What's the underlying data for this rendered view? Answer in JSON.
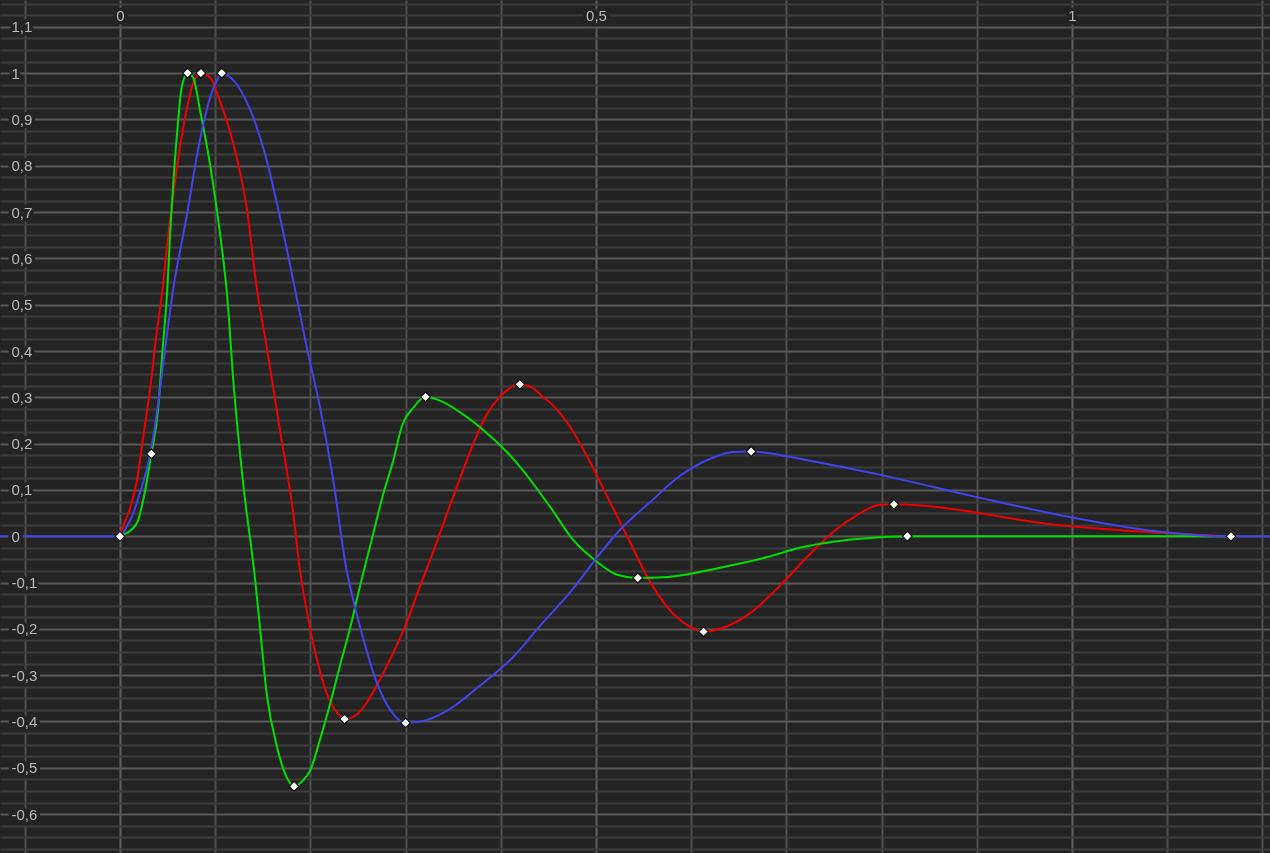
{
  "chart_data": {
    "type": "line",
    "grid": true,
    "xlim": [
      -0.126,
      1.208
    ],
    "xticks": [
      {
        "value": -0.1,
        "label": null
      },
      0,
      {
        "value": 0.1,
        "label": null
      },
      {
        "value": 0.2,
        "label": null
      },
      {
        "value": 0.3,
        "label": null
      },
      {
        "value": 0.4,
        "label": null
      },
      {
        "value": 0.5,
        "label": "0,5"
      },
      {
        "value": 0.6,
        "label": null
      },
      {
        "value": 0.7,
        "label": null
      },
      {
        "value": 0.8,
        "label": null
      },
      {
        "value": 0.9,
        "label": null
      },
      1,
      {
        "value": 1.1,
        "label": null
      },
      {
        "value": 1.2,
        "label": null
      }
    ],
    "ylim": [
      -0.684,
      1.158
    ],
    "yticks": [
      {
        "value": -0.675,
        "label": null
      },
      {
        "value": -0.65,
        "label": null
      },
      {
        "value": -0.625,
        "label": null
      },
      {
        "value": -0.6,
        "label": "-0,6"
      },
      {
        "value": -0.575,
        "label": null
      },
      {
        "value": -0.55,
        "label": null
      },
      {
        "value": -0.525,
        "label": null
      },
      {
        "value": -0.5,
        "label": "-0,5"
      },
      {
        "value": -0.475,
        "label": null
      },
      {
        "value": -0.45,
        "label": null
      },
      {
        "value": -0.425,
        "label": null
      },
      {
        "value": -0.4,
        "label": "-0,4"
      },
      {
        "value": -0.375,
        "label": null
      },
      {
        "value": -0.35,
        "label": null
      },
      {
        "value": -0.325,
        "label": null
      },
      {
        "value": -0.3,
        "label": "-0,3"
      },
      {
        "value": -0.275,
        "label": null
      },
      {
        "value": -0.25,
        "label": null
      },
      {
        "value": -0.225,
        "label": null
      },
      {
        "value": -0.2,
        "label": "-0,2"
      },
      {
        "value": -0.175,
        "label": null
      },
      {
        "value": -0.15,
        "label": null
      },
      {
        "value": -0.125,
        "label": null
      },
      {
        "value": -0.1,
        "label": "-0,1"
      },
      {
        "value": -0.075,
        "label": null
      },
      {
        "value": -0.05,
        "label": null
      },
      {
        "value": -0.025,
        "label": null
      },
      0,
      {
        "value": 0.025,
        "label": null
      },
      {
        "value": 0.05,
        "label": null
      },
      {
        "value": 0.075,
        "label": null
      },
      {
        "value": 0.1,
        "label": "0,1"
      },
      {
        "value": 0.125,
        "label": null
      },
      {
        "value": 0.15,
        "label": null
      },
      {
        "value": 0.175,
        "label": null
      },
      {
        "value": 0.2,
        "label": "0,2"
      },
      {
        "value": 0.225,
        "label": null
      },
      {
        "value": 0.25,
        "label": null
      },
      {
        "value": 0.275,
        "label": null
      },
      {
        "value": 0.3,
        "label": "0,3"
      },
      {
        "value": 0.325,
        "label": null
      },
      {
        "value": 0.35,
        "label": null
      },
      {
        "value": 0.375,
        "label": null
      },
      {
        "value": 0.4,
        "label": "0,4"
      },
      {
        "value": 0.425,
        "label": null
      },
      {
        "value": 0.45,
        "label": null
      },
      {
        "value": 0.475,
        "label": null
      },
      {
        "value": 0.5,
        "label": "0,5"
      },
      {
        "value": 0.525,
        "label": null
      },
      {
        "value": 0.55,
        "label": null
      },
      {
        "value": 0.575,
        "label": null
      },
      {
        "value": 0.6,
        "label": "0,6"
      },
      {
        "value": 0.625,
        "label": null
      },
      {
        "value": 0.65,
        "label": null
      },
      {
        "value": 0.675,
        "label": null
      },
      {
        "value": 0.7,
        "label": "0,7"
      },
      {
        "value": 0.725,
        "label": null
      },
      {
        "value": 0.75,
        "label": null
      },
      {
        "value": 0.775,
        "label": null
      },
      {
        "value": 0.8,
        "label": "0,8"
      },
      {
        "value": 0.825,
        "label": null
      },
      {
        "value": 0.85,
        "label": null
      },
      {
        "value": 0.875,
        "label": null
      },
      {
        "value": 0.9,
        "label": "0,9"
      },
      {
        "value": 0.925,
        "label": null
      },
      {
        "value": 0.95,
        "label": null
      },
      {
        "value": 0.975,
        "label": null
      },
      1,
      {
        "value": 1.025,
        "label": null
      },
      {
        "value": 1.05,
        "label": null
      },
      {
        "value": 1.075,
        "label": null
      },
      {
        "value": 1.1,
        "label": "1,1"
      },
      {
        "value": 1.125,
        "label": null
      },
      {
        "value": 1.15,
        "label": null
      }
    ],
    "series": [
      {
        "color": "#f00000",
        "x": [
          0,
          0.003,
          0.011,
          0.018,
          0.024,
          0.032,
          0.039,
          0.044,
          0.049,
          0.06,
          0.07,
          0.077,
          0.085,
          0.095,
          0.105,
          0.119,
          0.133,
          0.144,
          0.154,
          0.168,
          0.182,
          0.189,
          0.196,
          0.207,
          0.217,
          0.228,
          0.236,
          0.248,
          0.259,
          0.273,
          0.287,
          0.301,
          0.315,
          0.329,
          0.343,
          0.357,
          0.371,
          0.385,
          0.399,
          0.42,
          0.434,
          0.444,
          0.452,
          0.47,
          0.491,
          0.512,
          0.533,
          0.554,
          0.575,
          0.596,
          0.613,
          0.633,
          0.662,
          0.696,
          0.724,
          0.752,
          0.773,
          0.796,
          0.813,
          0.991,
          1.087,
          1.167
        ],
        "values": [
          0,
          0.02,
          0.063,
          0.122,
          0.208,
          0.323,
          0.446,
          0.521,
          0.618,
          0.798,
          0.921,
          0.979,
          1,
          0.99,
          0.94,
          0.848,
          0.711,
          0.532,
          0.41,
          0.23,
          0.05,
          -0.072,
          -0.159,
          -0.267,
          -0.338,
          -0.381,
          -0.395,
          -0.386,
          -0.36,
          -0.31,
          -0.252,
          -0.187,
          -0.109,
          -0.034,
          0.046,
          0.124,
          0.199,
          0.262,
          0.301,
          0.328,
          0.32,
          0.301,
          0.288,
          0.245,
          0.171,
          0.085,
          -0.001,
          -0.088,
          -0.153,
          -0.192,
          -0.206,
          -0.198,
          -0.166,
          -0.101,
          -0.04,
          0.014,
          0.044,
          0.067,
          0.069,
          0.023,
          0.008,
          0
        ]
      },
      {
        "color": "#00e000",
        "x": [
          0,
          0.007,
          0.018,
          0.026,
          0.033,
          0.04,
          0.045,
          0.049,
          0.054,
          0.06,
          0.065,
          0.071,
          0.077,
          0.084,
          0.095,
          0.105,
          0.113,
          0.119,
          0.129,
          0.142,
          0.147,
          0.154,
          0.165,
          0.175,
          0.183,
          0.191,
          0.2,
          0.21,
          0.221,
          0.231,
          0.242,
          0.252,
          0.266,
          0.276,
          0.287,
          0.297,
          0.308,
          0.321,
          0.339,
          0.357,
          0.378,
          0.417,
          0.452,
          0.476,
          0.501,
          0.522,
          0.544,
          0.575,
          0.609,
          0.644,
          0.68,
          0.714,
          0.749,
          0.781,
          0.827,
          1.167
        ],
        "values": [
          0,
          0.007,
          0.029,
          0.094,
          0.178,
          0.273,
          0.409,
          0.51,
          0.698,
          0.871,
          0.971,
          1,
          0.99,
          0.921,
          0.798,
          0.655,
          0.51,
          0.338,
          0.122,
          -0.094,
          -0.195,
          -0.338,
          -0.455,
          -0.52,
          -0.54,
          -0.53,
          -0.505,
          -0.44,
          -0.36,
          -0.28,
          -0.196,
          -0.109,
          0.005,
          0.087,
          0.163,
          0.243,
          0.277,
          0.301,
          0.29,
          0.268,
          0.236,
          0.158,
          0.063,
          -0.008,
          -0.055,
          -0.083,
          -0.09,
          -0.088,
          -0.077,
          -0.062,
          -0.045,
          -0.025,
          -0.012,
          -0.005,
          0,
          0
        ]
      },
      {
        "color": "#4343f0",
        "x": [
          -0.126,
          0,
          0.007,
          0.014,
          0.021,
          0.028,
          0.035,
          0.042,
          0.049,
          0.055,
          0.07,
          0.084,
          0.095,
          0.102,
          0.107,
          0.119,
          0.137,
          0.154,
          0.168,
          0.184,
          0.196,
          0.21,
          0.224,
          0.238,
          0.245,
          0.255,
          0.27,
          0.284,
          0.3,
          0.322,
          0.345,
          0.378,
          0.412,
          0.441,
          0.475,
          0.504,
          0.529,
          0.555,
          0.588,
          0.622,
          0.643,
          0.663,
          0.724,
          0.8,
          0.899,
          0.999,
          1.087,
          1.167,
          1.208
        ],
        "values": [
          0,
          0,
          0.02,
          0.05,
          0.094,
          0.143,
          0.215,
          0.316,
          0.43,
          0.521,
          0.69,
          0.856,
          0.949,
          0.985,
          1,
          0.985,
          0.92,
          0.813,
          0.69,
          0.532,
          0.41,
          0.28,
          0.122,
          -0.072,
          -0.137,
          -0.217,
          -0.317,
          -0.375,
          -0.403,
          -0.397,
          -0.375,
          -0.323,
          -0.263,
          -0.194,
          -0.116,
          -0.038,
          0.022,
          0.07,
          0.13,
          0.169,
          0.182,
          0.183,
          0.163,
          0.132,
          0.085,
          0.041,
          0.011,
          0,
          0
        ]
      },
      {
        "type": "scatter",
        "color": "#ffffff",
        "marker": "diamond",
        "x": [
          0,
          0.033,
          0.071,
          0.085,
          0.107,
          0.183,
          0.236,
          0.3,
          0.321,
          0.42,
          0.544,
          0.613,
          0.663,
          0.813,
          0.827,
          1.167
        ],
        "values": [
          0,
          0.178,
          1,
          1,
          1,
          -0.54,
          -0.395,
          -0.403,
          0.301,
          0.328,
          -0.09,
          -0.206,
          0.183,
          0.069,
          0,
          0
        ]
      }
    ]
  }
}
